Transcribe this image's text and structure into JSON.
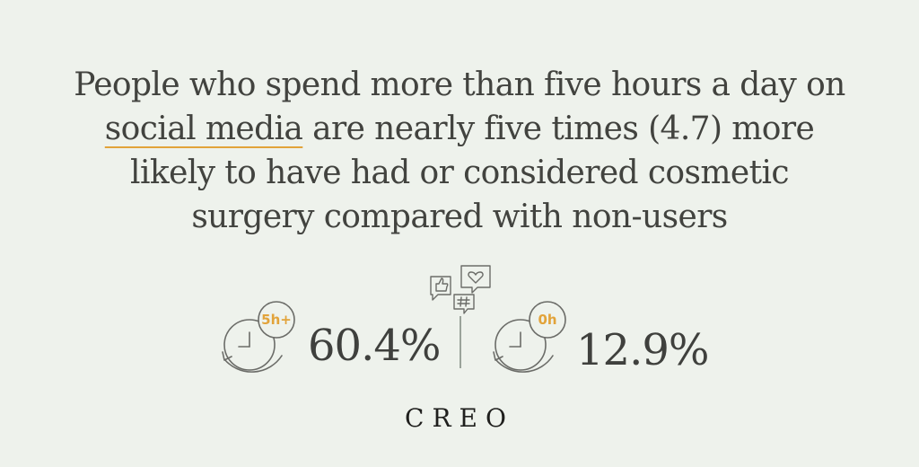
{
  "headline": {
    "line1": "People who spend more than five hours a day on",
    "line2_highlight": "social media",
    "line2_rest": " are nearly five times (4.7) more",
    "line3": "likely to have had or considered cosmetic",
    "line4": "surgery compared with non-users"
  },
  "stats": [
    {
      "badge": "5h+",
      "value": "60.4%"
    },
    {
      "badge": "0h",
      "value": "12.9%"
    }
  ],
  "social_icons": [
    "thumbs-up-icon",
    "heart-bubble-icon",
    "hashtag-bubble-icon"
  ],
  "brand": "CREO",
  "colors": {
    "background": "#eef2ec",
    "text": "#42433f",
    "accent": "#e2a33a",
    "icon_stroke": "#6b6c68"
  }
}
